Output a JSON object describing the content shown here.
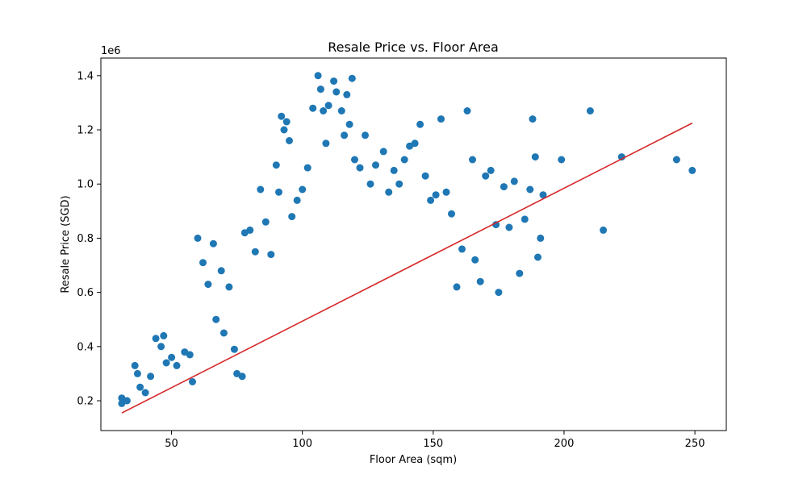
{
  "chart_data": {
    "type": "scatter",
    "title": "Resale Price vs. Floor Area",
    "xlabel": "Floor Area (sqm)",
    "ylabel": "Resale Price (SGD)",
    "y_offset_text": "1e6",
    "xlim": [
      23,
      262
    ],
    "ylim": [
      0.09,
      1.465
    ],
    "x_ticks": [
      50,
      100,
      150,
      200,
      250
    ],
    "x_tick_labels": [
      "50",
      "100",
      "150",
      "200",
      "250"
    ],
    "y_ticks": [
      0.2,
      0.4,
      0.6,
      0.8,
      1.0,
      1.2,
      1.4
    ],
    "y_tick_labels": [
      "0.2",
      "0.4",
      "0.6",
      "0.8",
      "1.0",
      "1.2",
      "1.4"
    ],
    "grid": false,
    "colors": {
      "points": "#1f77b4",
      "regression_line": "#d62728"
    },
    "series": [
      {
        "kind": "scatter",
        "points": [
          [
            31,
            0.19
          ],
          [
            31,
            0.21
          ],
          [
            33,
            0.2
          ],
          [
            36,
            0.33
          ],
          [
            37,
            0.3
          ],
          [
            38,
            0.25
          ],
          [
            40,
            0.23
          ],
          [
            42,
            0.29
          ],
          [
            44,
            0.43
          ],
          [
            46,
            0.4
          ],
          [
            47,
            0.44
          ],
          [
            48,
            0.34
          ],
          [
            50,
            0.36
          ],
          [
            52,
            0.33
          ],
          [
            55,
            0.38
          ],
          [
            57,
            0.37
          ],
          [
            58,
            0.27
          ],
          [
            60,
            0.8
          ],
          [
            62,
            0.71
          ],
          [
            64,
            0.63
          ],
          [
            66,
            0.78
          ],
          [
            67,
            0.5
          ],
          [
            69,
            0.68
          ],
          [
            70,
            0.45
          ],
          [
            72,
            0.62
          ],
          [
            74,
            0.39
          ],
          [
            75,
            0.3
          ],
          [
            77,
            0.29
          ],
          [
            78,
            0.82
          ],
          [
            80,
            0.83
          ],
          [
            82,
            0.75
          ],
          [
            84,
            0.98
          ],
          [
            86,
            0.86
          ],
          [
            88,
            0.74
          ],
          [
            90,
            1.07
          ],
          [
            91,
            0.97
          ],
          [
            92,
            1.25
          ],
          [
            93,
            1.2
          ],
          [
            94,
            1.23
          ],
          [
            95,
            1.16
          ],
          [
            96,
            0.88
          ],
          [
            98,
            0.94
          ],
          [
            100,
            0.98
          ],
          [
            102,
            1.06
          ],
          [
            104,
            1.28
          ],
          [
            106,
            1.4
          ],
          [
            107,
            1.35
          ],
          [
            108,
            1.27
          ],
          [
            109,
            1.15
          ],
          [
            110,
            1.29
          ],
          [
            112,
            1.38
          ],
          [
            113,
            1.34
          ],
          [
            115,
            1.27
          ],
          [
            116,
            1.18
          ],
          [
            117,
            1.33
          ],
          [
            118,
            1.22
          ],
          [
            119,
            1.39
          ],
          [
            120,
            1.09
          ],
          [
            122,
            1.06
          ],
          [
            124,
            1.18
          ],
          [
            126,
            1.0
          ],
          [
            128,
            1.07
          ],
          [
            131,
            1.12
          ],
          [
            133,
            0.97
          ],
          [
            135,
            1.05
          ],
          [
            137,
            1.0
          ],
          [
            139,
            1.09
          ],
          [
            141,
            1.14
          ],
          [
            143,
            1.15
          ],
          [
            145,
            1.22
          ],
          [
            147,
            1.03
          ],
          [
            149,
            0.94
          ],
          [
            151,
            0.96
          ],
          [
            153,
            1.24
          ],
          [
            155,
            0.97
          ],
          [
            157,
            0.89
          ],
          [
            159,
            0.62
          ],
          [
            161,
            0.76
          ],
          [
            163,
            1.27
          ],
          [
            165,
            1.09
          ],
          [
            166,
            0.72
          ],
          [
            168,
            0.64
          ],
          [
            170,
            1.03
          ],
          [
            172,
            1.05
          ],
          [
            174,
            0.85
          ],
          [
            175,
            0.6
          ],
          [
            177,
            0.99
          ],
          [
            179,
            0.84
          ],
          [
            181,
            1.01
          ],
          [
            183,
            0.67
          ],
          [
            185,
            0.87
          ],
          [
            187,
            0.98
          ],
          [
            188,
            1.24
          ],
          [
            189,
            1.1
          ],
          [
            190,
            0.73
          ],
          [
            191,
            0.8
          ],
          [
            192,
            0.96
          ],
          [
            199,
            1.09
          ],
          [
            210,
            1.27
          ],
          [
            215,
            0.83
          ],
          [
            222,
            1.1
          ],
          [
            243,
            1.09
          ],
          [
            249,
            1.05
          ]
        ]
      },
      {
        "kind": "line",
        "x": [
          31,
          249
        ],
        "y": [
          0.155,
          1.225
        ]
      }
    ]
  }
}
